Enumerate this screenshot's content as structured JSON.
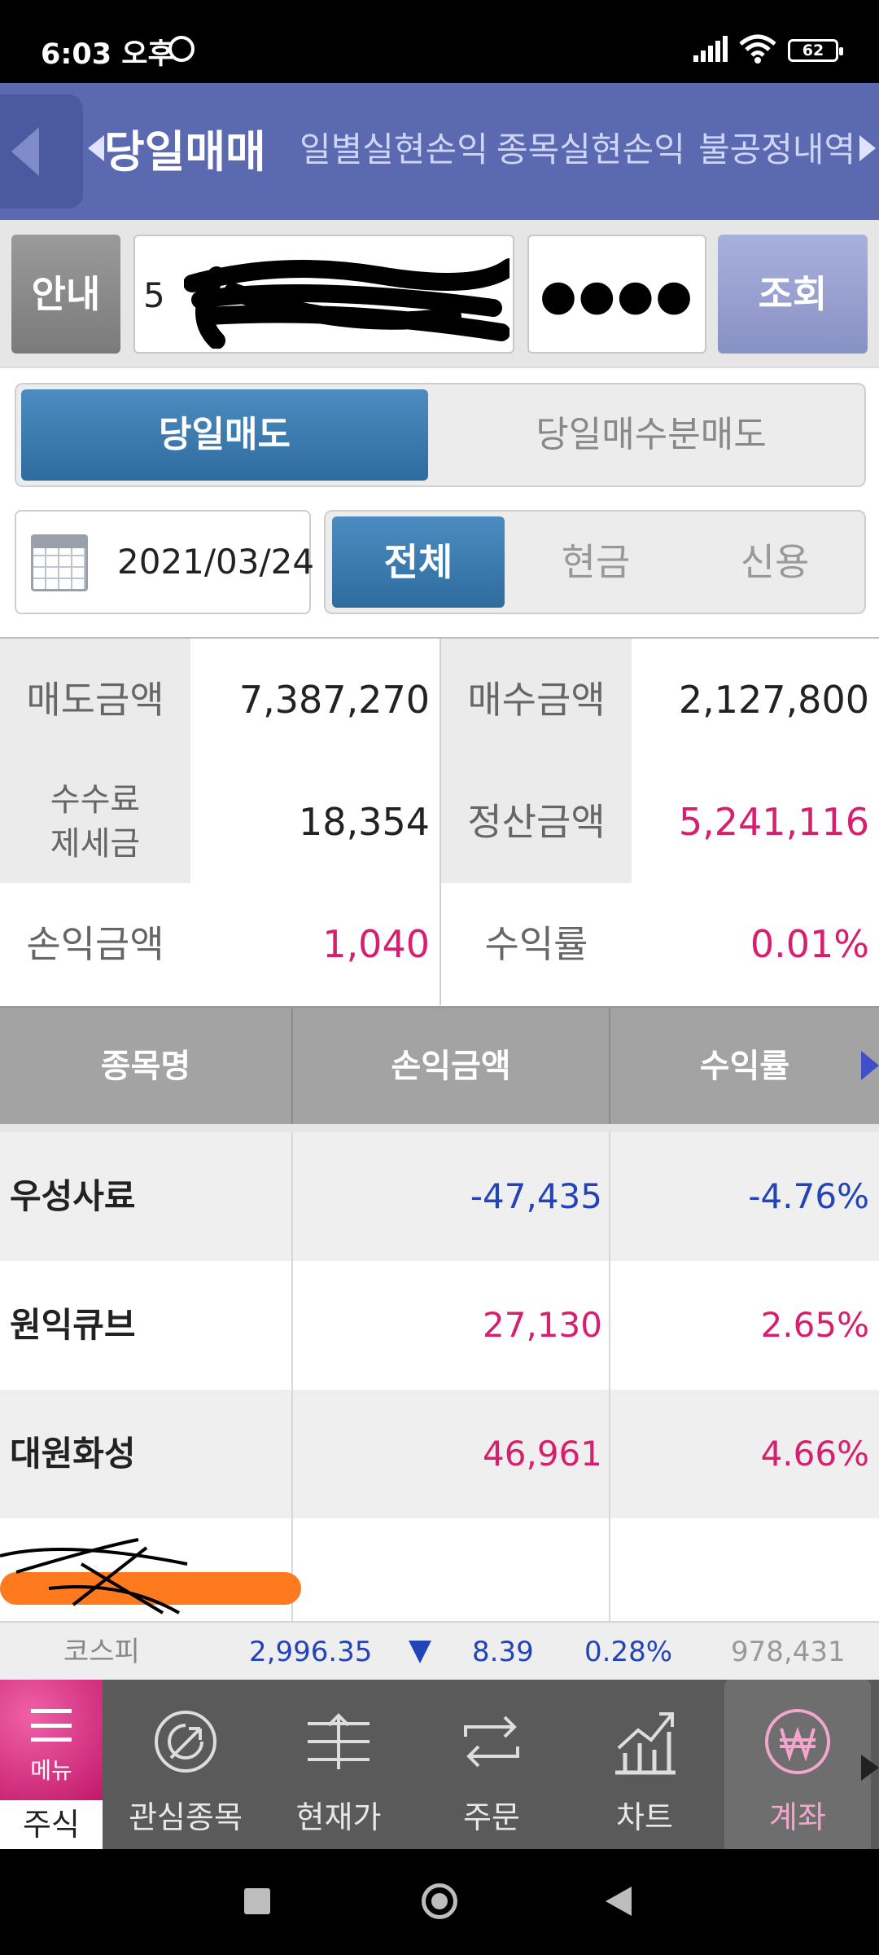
{
  "status_bar": {
    "time": "6:03 오후",
    "battery": "62"
  },
  "top_tabs": [
    {
      "label": "당일매매",
      "active": true
    },
    {
      "label": "일별실현손익",
      "active": false
    },
    {
      "label": "종목실현손익",
      "active": false
    },
    {
      "label": "불공정내역",
      "active": false
    }
  ],
  "account": {
    "info_label": "안내",
    "account_prefix": "5",
    "password_mask": "●●●●",
    "query_label": "조회"
  },
  "trade_type_tabs": [
    {
      "label": "당일매도",
      "active": true
    },
    {
      "label": "당일매수분매도",
      "active": false
    }
  ],
  "date": "2021/03/24",
  "filter_tabs": [
    {
      "label": "전체",
      "active": true
    },
    {
      "label": "현금",
      "active": false
    },
    {
      "label": "신용",
      "active": false
    }
  ],
  "summary": {
    "sell_amount_label": "매도금액",
    "sell_amount": "7,387,270",
    "buy_amount_label": "매수금액",
    "buy_amount": "2,127,800",
    "fee_tax_label": "수수료\n제세금",
    "fee_tax": "18,354",
    "settlement_label": "정산금액",
    "settlement": "5,241,116",
    "pnl_label": "손익금액",
    "pnl": "1,040",
    "return_label": "수익률",
    "return": "0.01%"
  },
  "table": {
    "headers": [
      "종목명",
      "손익금액",
      "수익률"
    ],
    "rows": [
      {
        "name": "우성사료",
        "pnl": "-47,435",
        "rate": "-4.76%",
        "sign": "neg"
      },
      {
        "name": "원익큐브",
        "pnl": "27,130",
        "rate": "2.65%",
        "sign": "pos"
      },
      {
        "name": "대원화성",
        "pnl": "46,961",
        "rate": "4.66%",
        "sign": "pos"
      }
    ]
  },
  "ticker": {
    "name": "코스피",
    "index": "2,996.35",
    "change": "8.39",
    "rate": "0.28%",
    "volume": "978,431"
  },
  "bottom_tabs": {
    "menu_label": "메뉴",
    "stock_label": "주식",
    "tabs": [
      {
        "label": "관심종목",
        "icon": "watchlist-icon"
      },
      {
        "label": "현재가",
        "icon": "current-price-icon"
      },
      {
        "label": "주문",
        "icon": "order-icon"
      },
      {
        "label": "차트",
        "icon": "chart-icon"
      },
      {
        "label": "계좌",
        "icon": "won-account-icon",
        "active": true
      }
    ]
  },
  "colors": {
    "nav_blue": "#5a69b0",
    "active_segment": "#3a7bb0",
    "positive": "#d81f6d",
    "negative": "#2244b8",
    "menu_pink": "#e0428e"
  }
}
